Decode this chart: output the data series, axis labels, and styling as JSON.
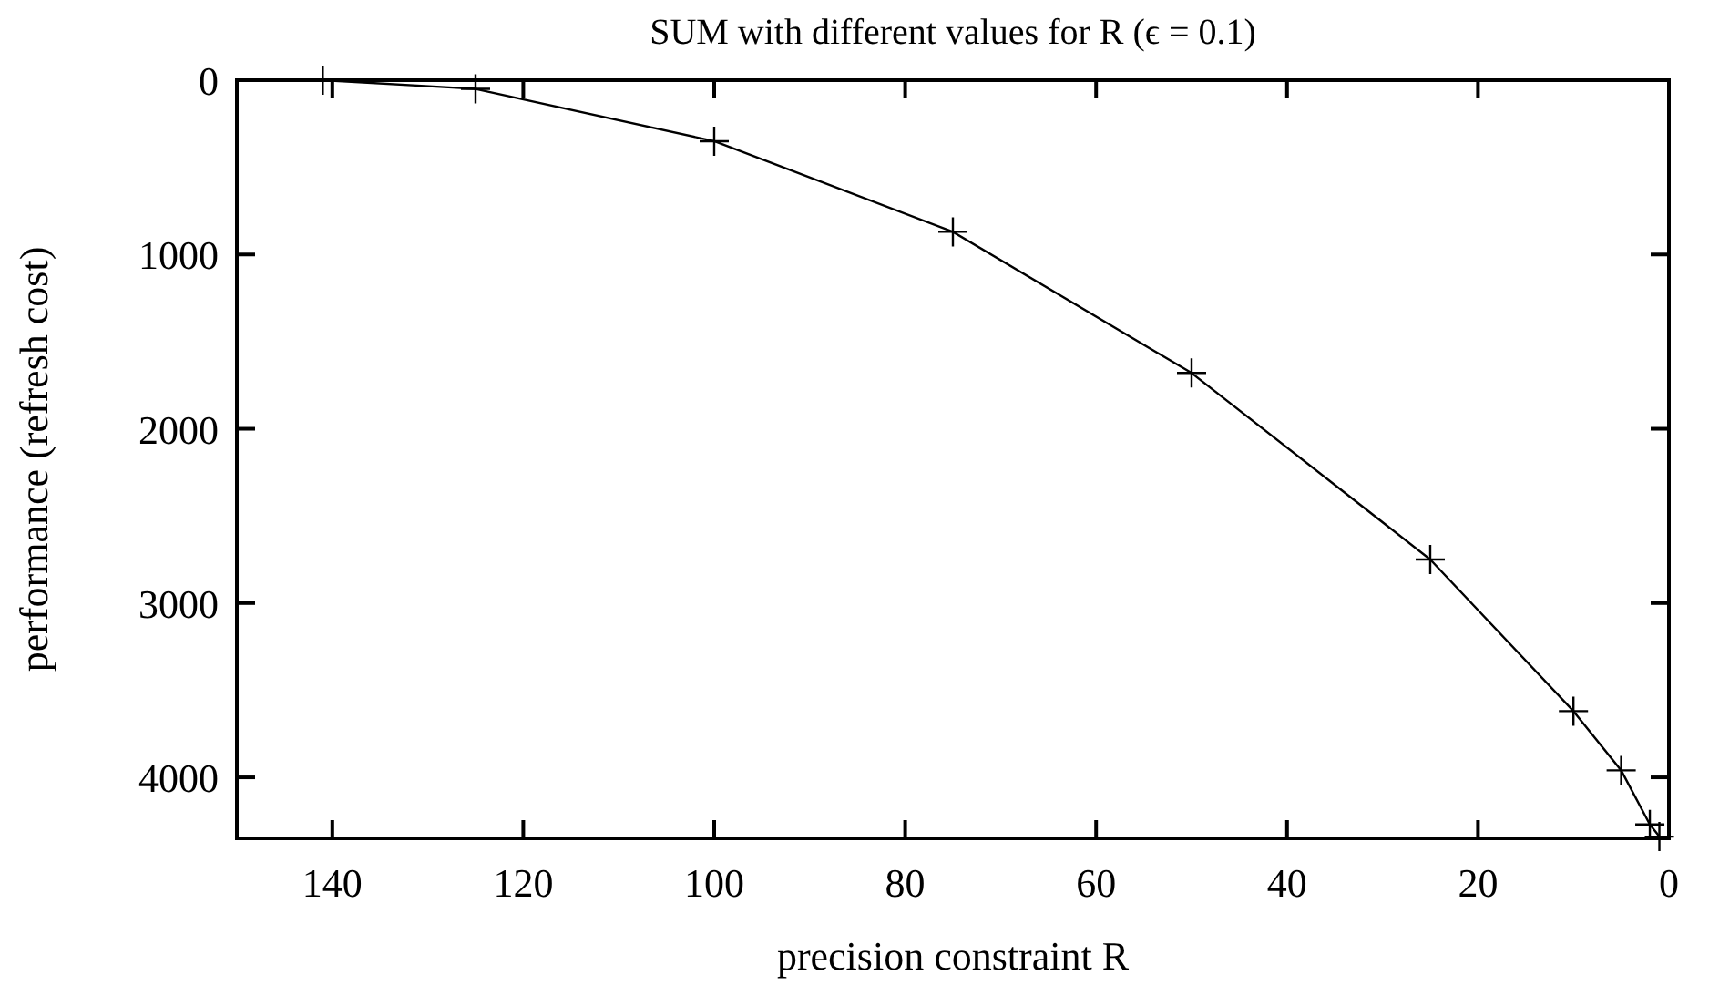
{
  "chart_data": {
    "type": "line",
    "title": "SUM with different values for R (ϵ = 0.1)",
    "xlabel": "precision constraint R",
    "ylabel": "performance (refresh cost)",
    "x": [
      141,
      125,
      100,
      75,
      50,
      25,
      10,
      5,
      2,
      1
    ],
    "series": [
      {
        "color": "#000000",
        "values": [
          0,
          50,
          350,
          870,
          1680,
          2750,
          3620,
          3960,
          4270,
          4340
        ]
      }
    ],
    "xlim": [
      150,
      0
    ],
    "ylim": [
      4350,
      0
    ],
    "xticks": [
      140,
      120,
      100,
      80,
      60,
      40,
      20,
      0
    ],
    "yticks": [
      0,
      1000,
      2000,
      3000,
      4000
    ],
    "marker": "cross",
    "line_style": "solid",
    "grid": false
  }
}
